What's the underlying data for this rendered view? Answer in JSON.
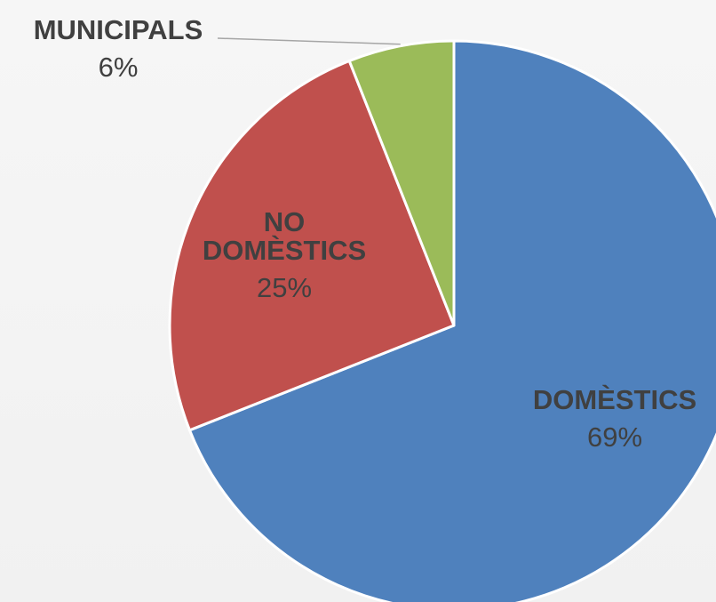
{
  "chart_data": {
    "type": "pie",
    "categories": [
      "DOMÈSTICS",
      "NO DOMÈSTICS",
      "MUNICIPALS"
    ],
    "values": [
      69,
      25,
      6
    ],
    "labels": [
      {
        "category_lines": [
          "DOMÈSTICS"
        ],
        "percent": "69%"
      },
      {
        "category_lines": [
          "NO",
          "DOMÈSTICS"
        ],
        "percent": "25%"
      },
      {
        "category_lines": [
          "MUNICIPALS"
        ],
        "percent": "6%"
      }
    ],
    "colors": [
      "#4f81bd",
      "#c0504d",
      "#9bbb59"
    ],
    "legend": "none",
    "start_angle": "12 o'clock",
    "direction": "clockwise"
  }
}
